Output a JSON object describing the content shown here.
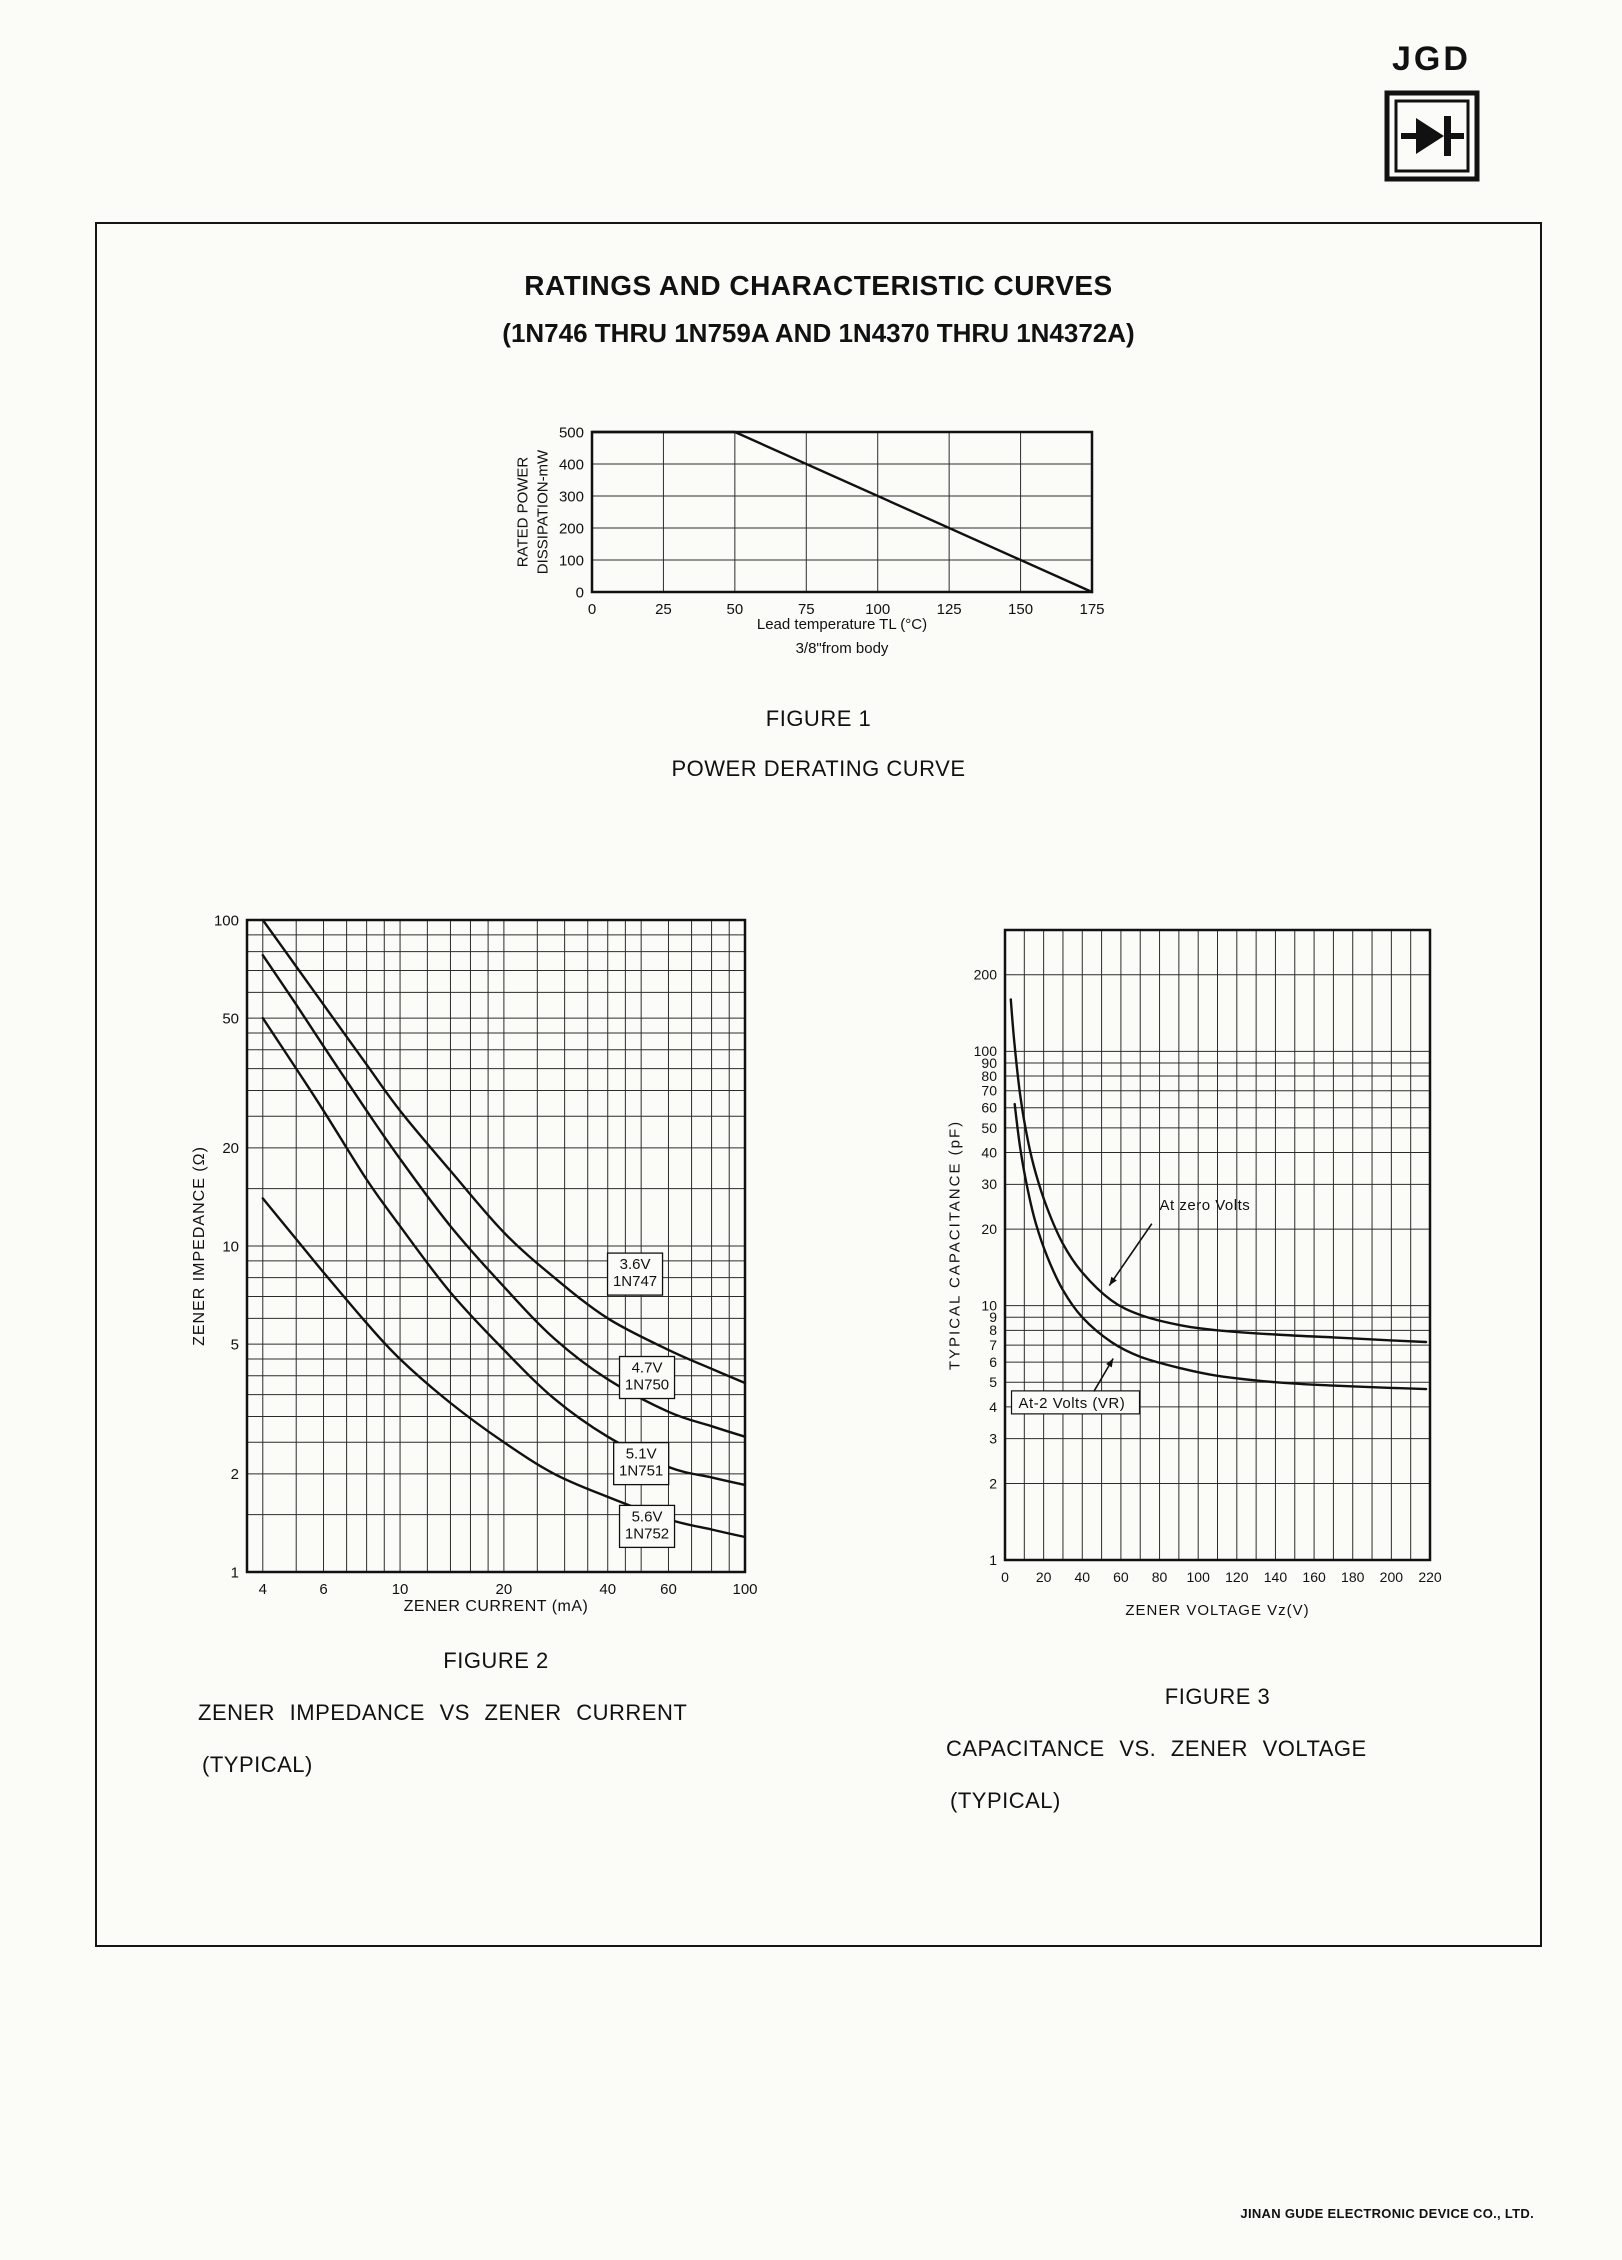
{
  "page": {
    "logo_text": "JGD",
    "footer": "JINAN GUDE ELECTRONIC DEVICE CO., LTD."
  },
  "title": {
    "line1": "RATINGS AND CHARACTERISTIC CURVES",
    "line2": "(1N746 THRU 1N759A AND 1N4370 THRU 1N4372A)"
  },
  "figures": {
    "fig1": {
      "caption": "FIGURE 1",
      "subcaption": "POWER DERATING CURVE",
      "ylabel1": "RATED POWER",
      "ylabel2": "DISSIPATION-mW",
      "xlabel1": "Lead temperature TL (°C)",
      "xlabel2": "3/8\"from body"
    },
    "fig2": {
      "caption": "FIGURE 2",
      "title1": "ZENER IMPEDANCE VS ZENER CURRENT",
      "title2": "(TYPICAL)",
      "ylabel": "ZENER IMPEDANCE (Ω)",
      "xlabel": "ZENER CURRENT (mA)"
    },
    "fig3": {
      "caption": "FIGURE 3",
      "title1": "CAPACITANCE VS. ZENER VOLTAGE",
      "title2": "(TYPICAL)",
      "ylabel": "TYPICAL CAPACITANCE (pF)",
      "xlabel": "ZENER VOLTAGE Vz(V)"
    }
  },
  "chart_data": [
    {
      "id": "fig1",
      "type": "line",
      "title": "POWER DERATING CURVE",
      "xlabel": "Lead temperature TL (C), 3/8 inch from body",
      "ylabel": "RATED POWER DISSIPATION-mW",
      "xscale": "linear",
      "yscale": "linear",
      "xlim": [
        0,
        175
      ],
      "ylim": [
        0,
        500
      ],
      "xgrid": [
        25,
        50,
        75,
        100,
        125,
        150
      ],
      "ygrid": [
        100,
        200,
        300,
        400
      ],
      "xticks": [
        {
          "v": 0,
          "l": "0"
        },
        {
          "v": 25,
          "l": "25"
        },
        {
          "v": 50,
          "l": "50"
        },
        {
          "v": 75,
          "l": "75"
        },
        {
          "v": 100,
          "l": "100"
        },
        {
          "v": 125,
          "l": "125"
        },
        {
          "v": 150,
          "l": "150"
        },
        {
          "v": 175,
          "l": "175"
        }
      ],
      "yticks": [
        {
          "v": 0,
          "l": "0"
        },
        {
          "v": 100,
          "l": "100"
        },
        {
          "v": 200,
          "l": "200"
        },
        {
          "v": 300,
          "l": "300"
        },
        {
          "v": 400,
          "l": "400"
        },
        {
          "v": 500,
          "l": "500"
        }
      ],
      "tickFont": 15,
      "smooth": false,
      "series": [
        {
          "name": "rated-power",
          "points": [
            [
              0,
              500
            ],
            [
              50,
              500
            ],
            [
              175,
              0
            ]
          ]
        }
      ]
    },
    {
      "id": "fig2",
      "type": "line",
      "title": "ZENER IMPEDANCE VS ZENER CURRENT (TYPICAL)",
      "xlabel": "ZENER CURRENT (mA)",
      "ylabel": "ZENER IMPEDANCE (Ohm)",
      "xscale": "log",
      "yscale": "log",
      "xlim": [
        3.6,
        100
      ],
      "ylim": [
        1,
        100
      ],
      "xgrid": [
        4,
        5,
        6,
        7,
        8,
        9,
        10,
        12,
        14,
        16,
        18,
        20,
        25,
        30,
        35,
        40,
        45,
        50,
        60,
        70,
        80,
        90
      ],
      "ygrid": [
        1.5,
        2,
        2.5,
        3,
        3.5,
        4,
        4.5,
        5,
        6,
        7,
        8,
        9,
        10,
        15,
        20,
        25,
        30,
        35,
        40,
        45,
        50,
        60,
        70,
        80,
        90
      ],
      "xticks": [
        {
          "v": 4,
          "l": "4"
        },
        {
          "v": 6,
          "l": "6"
        },
        {
          "v": 10,
          "l": "10"
        },
        {
          "v": 20,
          "l": "20"
        },
        {
          "v": 40,
          "l": "40"
        },
        {
          "v": 60,
          "l": "60"
        },
        {
          "v": 100,
          "l": "100"
        }
      ],
      "yticks": [
        {
          "v": 1,
          "l": "1"
        },
        {
          "v": 2,
          "l": "2"
        },
        {
          "v": 5,
          "l": "5"
        },
        {
          "v": 10,
          "l": "10"
        },
        {
          "v": 20,
          "l": "20"
        },
        {
          "v": 50,
          "l": "50"
        },
        {
          "v": 100,
          "l": "100"
        }
      ],
      "tickFont": 15,
      "smooth": true,
      "series": [
        {
          "name": "zener-3v6-1n747",
          "points": [
            [
              4,
              100
            ],
            [
              5,
              72
            ],
            [
              6,
              55
            ],
            [
              8,
              36
            ],
            [
              10,
              26
            ],
            [
              14,
              17
            ],
            [
              20,
              11
            ],
            [
              28,
              8
            ],
            [
              40,
              6
            ],
            [
              60,
              4.8
            ],
            [
              80,
              4.2
            ],
            [
              100,
              3.8
            ]
          ]
        },
        {
          "name": "zener-4v7-1n750",
          "points": [
            [
              4,
              78
            ],
            [
              5,
              55
            ],
            [
              6,
              41
            ],
            [
              8,
              26
            ],
            [
              10,
              18.5
            ],
            [
              14,
              11.5
            ],
            [
              20,
              7.5
            ],
            [
              28,
              5.2
            ],
            [
              40,
              3.9
            ],
            [
              60,
              3.1
            ],
            [
              80,
              2.8
            ],
            [
              100,
              2.6
            ]
          ]
        },
        {
          "name": "zener-5v1-1n751",
          "points": [
            [
              4,
              50
            ],
            [
              5,
              35
            ],
            [
              6,
              26
            ],
            [
              8,
              16
            ],
            [
              10,
              11.5
            ],
            [
              14,
              7.2
            ],
            [
              20,
              4.8
            ],
            [
              28,
              3.4
            ],
            [
              40,
              2.6
            ],
            [
              60,
              2.1
            ],
            [
              80,
              1.95
            ],
            [
              100,
              1.85
            ]
          ]
        },
        {
          "name": "zener-5v6-1n752",
          "points": [
            [
              4,
              14
            ],
            [
              5,
              10.5
            ],
            [
              6,
              8.3
            ],
            [
              8,
              5.8
            ],
            [
              10,
              4.5
            ],
            [
              14,
              3.3
            ],
            [
              20,
              2.5
            ],
            [
              28,
              2.0
            ],
            [
              40,
              1.7
            ],
            [
              60,
              1.45
            ],
            [
              80,
              1.35
            ],
            [
              100,
              1.28
            ]
          ]
        }
      ],
      "labels": [
        {
          "x": 48,
          "y": 8.2,
          "lines": [
            "3.6V",
            "1N747"
          ]
        },
        {
          "x": 52,
          "y": 3.95,
          "lines": [
            "4.7V",
            "1N750"
          ]
        },
        {
          "x": 50,
          "y": 2.15,
          "lines": [
            "5.1V",
            "1N751"
          ]
        },
        {
          "x": 52,
          "y": 1.38,
          "lines": [
            "5.6V",
            "1N752"
          ]
        }
      ]
    },
    {
      "id": "fig3",
      "type": "line",
      "title": "CAPACITANCE VS. ZENER VOLTAGE (TYPICAL)",
      "xlabel": "ZENER VOLTAGE Vz(V)",
      "ylabel": "TYPICAL CAPACITANCE (pF)",
      "xscale": "linear",
      "yscale": "log",
      "xlim": [
        0,
        220
      ],
      "ylim": [
        1,
        300
      ],
      "xgrid": [
        10,
        20,
        30,
        40,
        50,
        60,
        70,
        80,
        90,
        100,
        110,
        120,
        130,
        140,
        150,
        160,
        170,
        180,
        190,
        200,
        210
      ],
      "ygrid": [
        2,
        3,
        4,
        5,
        6,
        7,
        8,
        9,
        10,
        20,
        30,
        40,
        50,
        60,
        70,
        80,
        90,
        100,
        200
      ],
      "xticks": [
        {
          "v": 0,
          "l": "0"
        },
        {
          "v": 20,
          "l": "20"
        },
        {
          "v": 40,
          "l": "40"
        },
        {
          "v": 60,
          "l": "60"
        },
        {
          "v": 80,
          "l": "80"
        },
        {
          "v": 100,
          "l": "100"
        },
        {
          "v": 120,
          "l": "120"
        },
        {
          "v": 140,
          "l": "140"
        },
        {
          "v": 160,
          "l": "160"
        },
        {
          "v": 180,
          "l": "180"
        },
        {
          "v": 200,
          "l": "200"
        },
        {
          "v": 220,
          "l": "220"
        }
      ],
      "yticks": [
        {
          "v": 1,
          "l": "1"
        },
        {
          "v": 2,
          "l": "2"
        },
        {
          "v": 3,
          "l": "3"
        },
        {
          "v": 4,
          "l": "4"
        },
        {
          "v": 5,
          "l": "5"
        },
        {
          "v": 6,
          "l": "6"
        },
        {
          "v": 7,
          "l": "7"
        },
        {
          "v": 8,
          "l": "8"
        },
        {
          "v": 9,
          "l": "9"
        },
        {
          "v": 10,
          "l": "10"
        },
        {
          "v": 20,
          "l": "20"
        },
        {
          "v": 30,
          "l": "30"
        },
        {
          "v": 40,
          "l": "40"
        },
        {
          "v": 50,
          "l": "50"
        },
        {
          "v": 60,
          "l": "60"
        },
        {
          "v": 70,
          "l": "70"
        },
        {
          "v": 80,
          "l": "80"
        },
        {
          "v": 90,
          "l": "90"
        },
        {
          "v": 100,
          "l": "100"
        },
        {
          "v": 200,
          "l": "200"
        }
      ],
      "tickFont": 14,
      "smooth": true,
      "series": [
        {
          "name": "at-zero-volts",
          "points": [
            [
              3,
              160
            ],
            [
              5,
              105
            ],
            [
              8,
              66
            ],
            [
              12,
              44
            ],
            [
              16,
              33
            ],
            [
              22,
              24
            ],
            [
              30,
              17.5
            ],
            [
              40,
              13.5
            ],
            [
              55,
              10.5
            ],
            [
              70,
              9.2
            ],
            [
              90,
              8.4
            ],
            [
              110,
              8.0
            ],
            [
              140,
              7.7
            ],
            [
              170,
              7.5
            ],
            [
              200,
              7.3
            ],
            [
              218,
              7.2
            ]
          ]
        },
        {
          "name": "at-minus-2-volts",
          "points": [
            [
              5,
              62
            ],
            [
              8,
              41
            ],
            [
              12,
              28
            ],
            [
              16,
              21
            ],
            [
              22,
              15.5
            ],
            [
              30,
              11.5
            ],
            [
              40,
              9
            ],
            [
              55,
              7.2
            ],
            [
              70,
              6.3
            ],
            [
              90,
              5.7
            ],
            [
              110,
              5.3
            ],
            [
              140,
              5.0
            ],
            [
              170,
              4.85
            ],
            [
              200,
              4.75
            ],
            [
              218,
              4.7
            ]
          ]
        }
      ],
      "annotations": [
        {
          "text": "At zero Volts",
          "x": 80,
          "y": 24,
          "box": false,
          "arrow": {
            "x1": 76,
            "y1": 21,
            "x2": 54,
            "y2": 12
          }
        },
        {
          "text": "At-2 Volts (VR)",
          "x": 7,
          "y": 4,
          "box": true,
          "arrow": {
            "x1": 46,
            "y1": 4.6,
            "x2": 56,
            "y2": 6.2
          }
        }
      ]
    }
  ]
}
